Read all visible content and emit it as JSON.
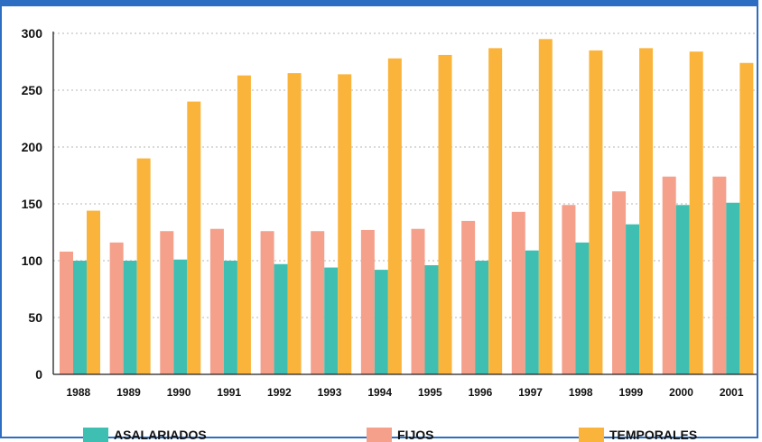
{
  "chart_data": {
    "type": "bar",
    "categories": [
      "1988",
      "1989",
      "1990",
      "1991",
      "1992",
      "1993",
      "1994",
      "1995",
      "1996",
      "1997",
      "1998",
      "1999",
      "2000",
      "2001"
    ],
    "series": [
      {
        "name": "FIJOS",
        "color": "#f4a08b",
        "values": [
          108,
          116,
          126,
          128,
          126,
          126,
          127,
          128,
          135,
          143,
          149,
          161,
          174,
          174
        ]
      },
      {
        "name": "ASALARIADOS",
        "color": "#3fbfb1",
        "values": [
          100,
          100,
          101,
          100,
          97,
          94,
          92,
          96,
          100,
          109,
          116,
          132,
          149,
          151
        ]
      },
      {
        "name": "TEMPORALES",
        "color": "#fbb43b",
        "values": [
          144,
          190,
          240,
          263,
          265,
          264,
          278,
          281,
          287,
          295,
          285,
          287,
          284,
          274
        ]
      }
    ],
    "yticks": [
      "0",
      "50",
      "100",
      "150",
      "200",
      "250",
      "300"
    ],
    "ylim": [
      0,
      300
    ],
    "grid": true,
    "legend": [
      {
        "label": "ASALARIADOS",
        "color": "#3fbfb1"
      },
      {
        "label": "FIJOS",
        "color": "#f4a08b"
      },
      {
        "label": "TEMPORALES",
        "color": "#fbb43b"
      }
    ],
    "legend_position": "bottom"
  }
}
